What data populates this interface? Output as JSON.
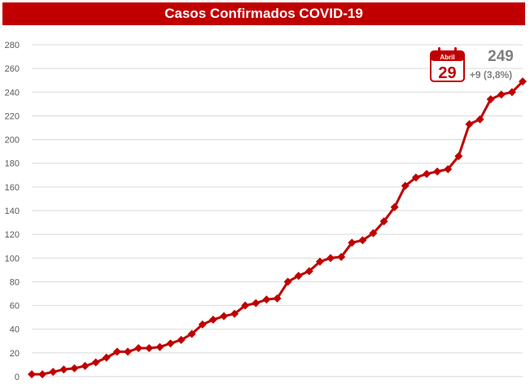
{
  "colors": {
    "accent": "#c00000",
    "grid": "#d9d9d9",
    "badge_text": "#7f7f7f"
  },
  "badge": {
    "calendar_month": "Abril",
    "calendar_day": "29",
    "total": "249",
    "delta": "+9 (3,8%)",
    "icon": "calendar-icon"
  },
  "chart_data": {
    "type": "line",
    "title": "Casos Confirmados COVID-19",
    "xlabel": "",
    "ylabel": "",
    "ylim": [
      0,
      280
    ],
    "yticks": [
      0,
      20,
      40,
      60,
      80,
      100,
      120,
      140,
      160,
      180,
      200,
      220,
      240,
      260,
      280
    ],
    "grid": true,
    "legend": "none",
    "marker": "diamond",
    "series": [
      {
        "values": [
          2,
          2,
          4,
          6,
          7,
          9,
          12,
          16,
          21,
          21,
          24,
          24,
          25,
          28,
          31,
          36,
          44,
          48,
          51,
          53,
          60,
          62,
          65,
          66,
          80,
          85,
          89,
          97,
          100,
          101,
          113,
          115,
          121,
          131,
          143,
          161,
          168,
          171,
          173,
          175,
          186,
          213,
          217,
          234,
          238,
          240,
          249
        ]
      }
    ]
  }
}
